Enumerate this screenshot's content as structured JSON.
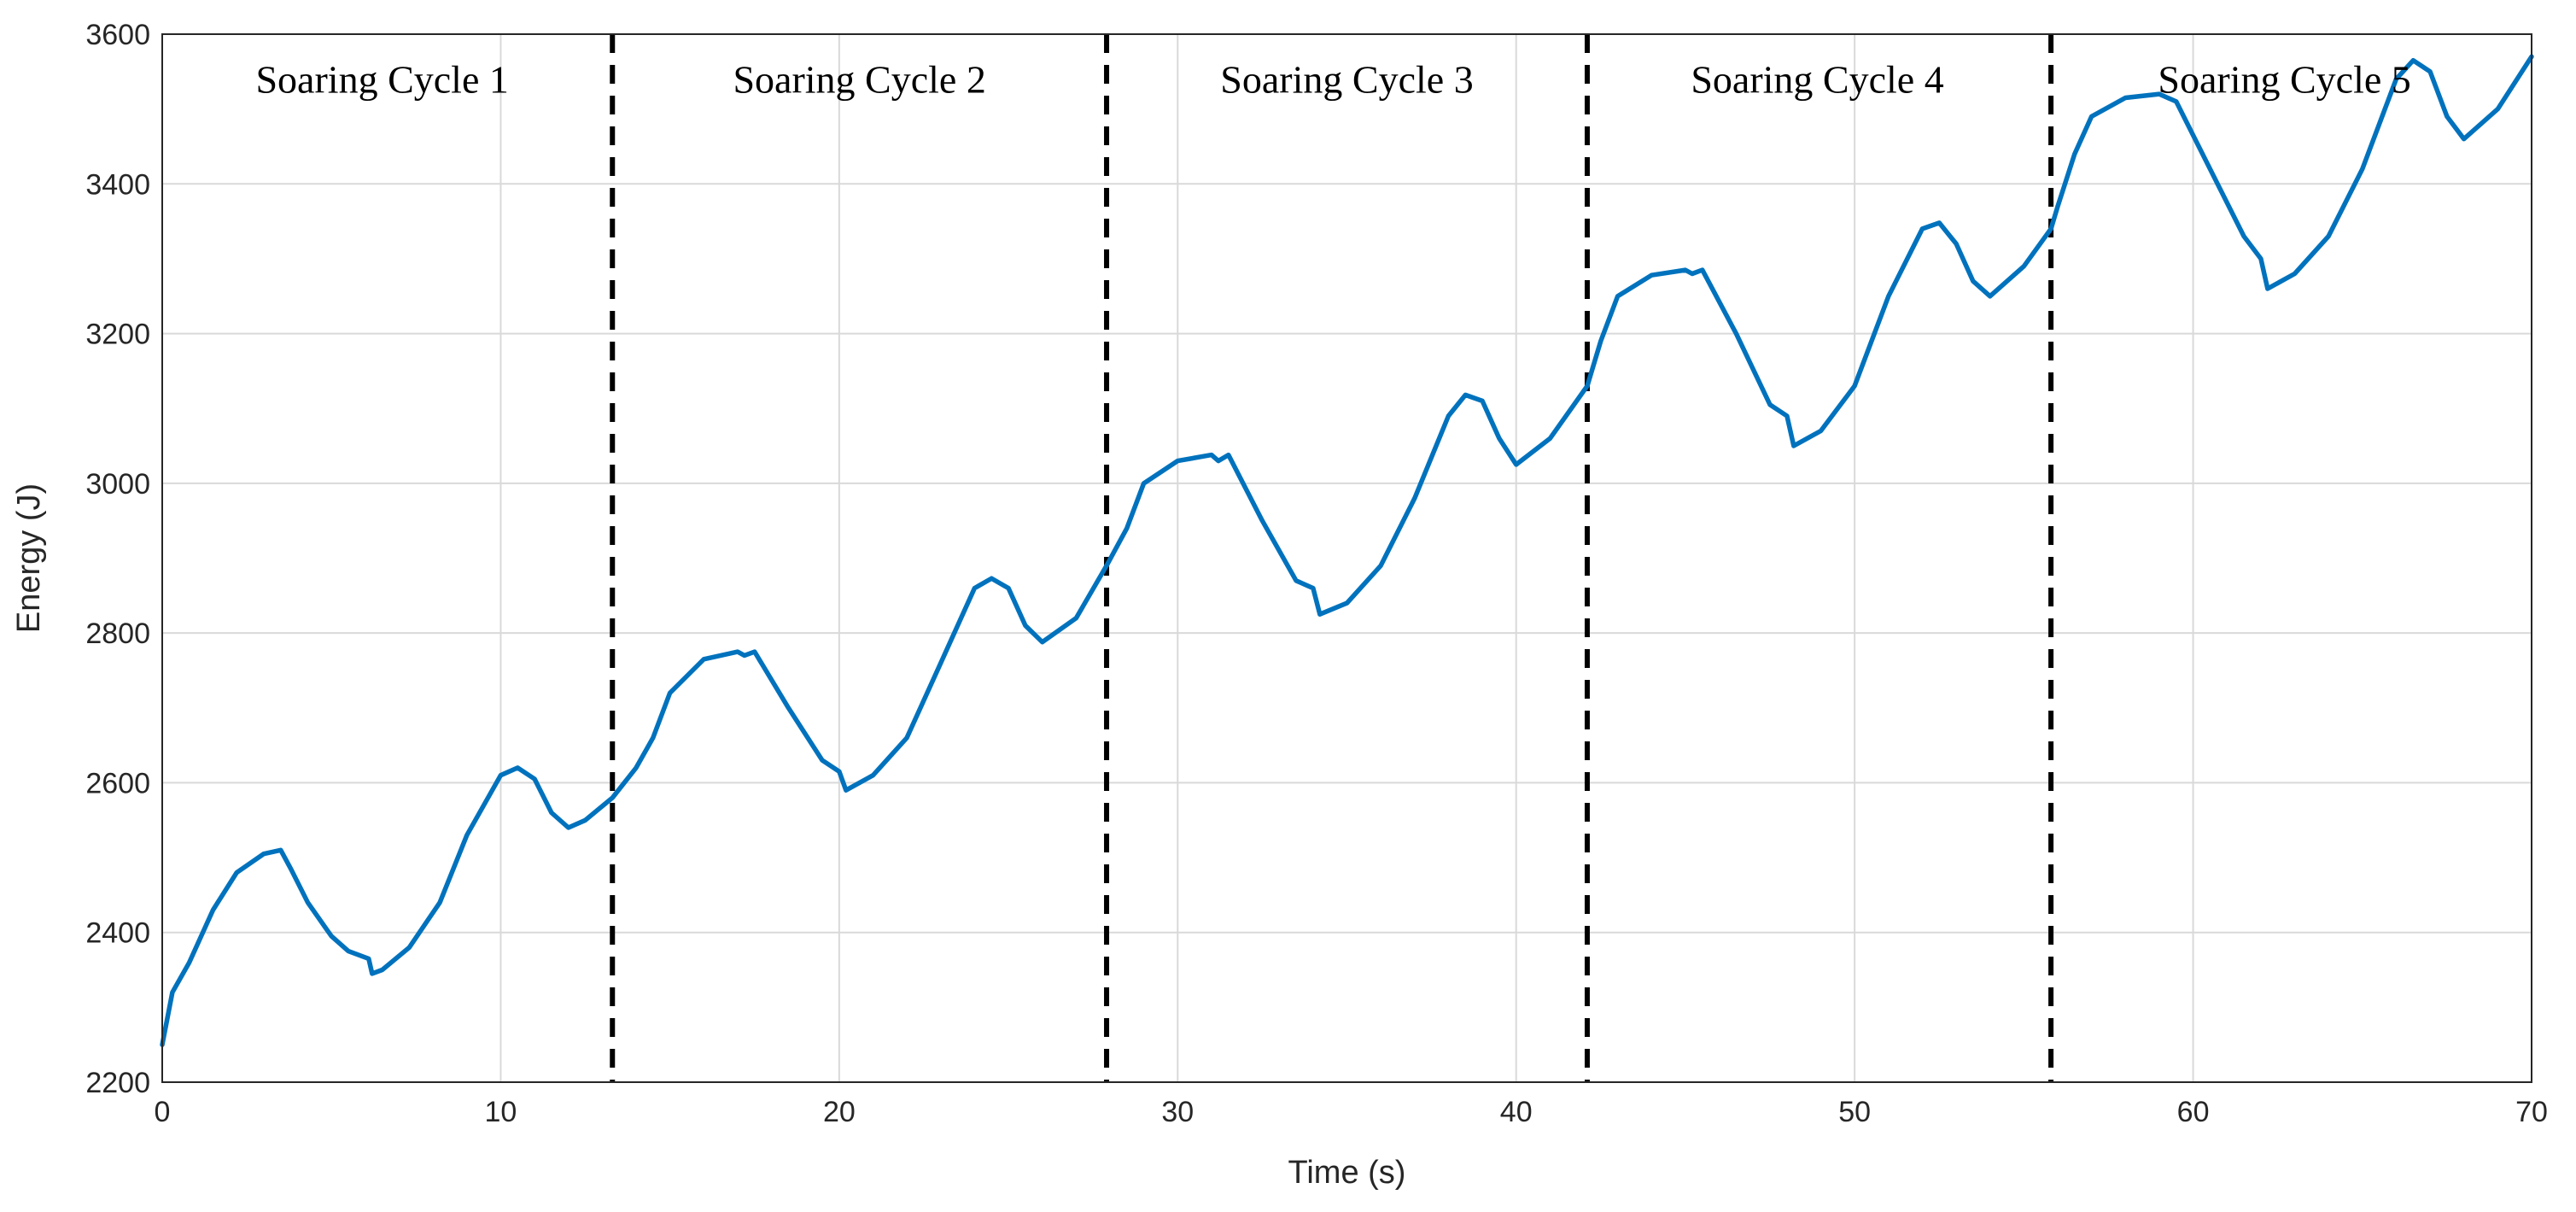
{
  "chart_data": {
    "type": "line",
    "title": "",
    "xlabel": "Time (s)",
    "ylabel": "Energy (J)",
    "xlim": [
      0,
      70
    ],
    "ylim": [
      2200,
      3600
    ],
    "xticks": [
      0,
      10,
      20,
      30,
      40,
      50,
      60,
      70
    ],
    "xtick_labels": [
      "0",
      "10",
      "20",
      "30",
      "40",
      "50",
      "60",
      "70"
    ],
    "yticks": [
      2200,
      2400,
      2600,
      2800,
      3000,
      3200,
      3400,
      3600
    ],
    "ytick_labels": [
      "2200",
      "2400",
      "2600",
      "2800",
      "3000",
      "3200",
      "3400",
      "3600"
    ],
    "grid": true,
    "cycle_dividers": [
      13.3,
      27.9,
      42.1,
      55.8
    ],
    "cycle_labels": [
      {
        "text": "Soaring Cycle 1",
        "x": 6.5
      },
      {
        "text": "Soaring Cycle 2",
        "x": 20.6
      },
      {
        "text": "Soaring Cycle 3",
        "x": 35.0
      },
      {
        "text": "Soaring Cycle 4",
        "x": 48.9
      },
      {
        "text": "Soaring Cycle 5",
        "x": 62.7
      }
    ],
    "cycle_label_y": 3540,
    "series": [
      {
        "name": "Energy",
        "color": "#0072BD",
        "x": [
          0,
          0.3,
          0.8,
          1.5,
          2.2,
          3.0,
          3.5,
          3.8,
          4.3,
          5.0,
          5.5,
          6.1,
          6.2,
          6.5,
          7.3,
          8.2,
          9.0,
          10.0,
          10.5,
          11.0,
          11.5,
          12.0,
          12.5,
          13.3,
          14.0,
          14.5,
          15.0,
          16.0,
          17.0,
          17.2,
          17.5,
          18.5,
          19.5,
          20.0,
          20.2,
          21.0,
          22.0,
          23.0,
          24.0,
          24.5,
          25.0,
          25.5,
          26.0,
          27.0,
          27.9,
          28.5,
          29.0,
          30.0,
          31.0,
          31.2,
          31.5,
          32.5,
          33.5,
          34.0,
          34.2,
          35.0,
          36.0,
          37.0,
          38.0,
          38.5,
          39.0,
          39.5,
          40.0,
          41.0,
          42.1,
          42.5,
          43.0,
          44.0,
          45.0,
          45.2,
          45.5,
          46.5,
          47.5,
          48.0,
          48.2,
          49.0,
          50.0,
          51.0,
          52.0,
          52.5,
          53.0,
          53.5,
          54.0,
          55.0,
          55.8,
          56.0,
          56.5,
          57.0,
          58.0,
          59.0,
          59.5,
          60.5,
          61.5,
          62.0,
          62.2,
          63.0,
          64.0,
          65.0,
          66.0,
          66.5,
          67.0,
          67.5,
          68.0,
          69.0,
          70.0
        ],
        "y": [
          2250,
          2320,
          2360,
          2430,
          2480,
          2505,
          2510,
          2485,
          2440,
          2395,
          2375,
          2365,
          2345,
          2350,
          2380,
          2440,
          2530,
          2610,
          2620,
          2605,
          2560,
          2540,
          2550,
          2580,
          2620,
          2660,
          2720,
          2765,
          2775,
          2770,
          2775,
          2700,
          2630,
          2615,
          2590,
          2610,
          2660,
          2760,
          2860,
          2873,
          2860,
          2810,
          2788,
          2820,
          2890,
          2940,
          3000,
          3030,
          3038,
          3030,
          3038,
          2950,
          2870,
          2860,
          2825,
          2840,
          2890,
          2980,
          3090,
          3118,
          3110,
          3060,
          3025,
          3060,
          3130,
          3190,
          3250,
          3278,
          3285,
          3280,
          3285,
          3200,
          3105,
          3090,
          3050,
          3070,
          3130,
          3250,
          3340,
          3348,
          3320,
          3270,
          3250,
          3290,
          3340,
          3370,
          3440,
          3490,
          3515,
          3520,
          3510,
          3420,
          3330,
          3300,
          3260,
          3280,
          3330,
          3420,
          3540,
          3565,
          3550,
          3490,
          3460,
          3500,
          3570
        ]
      }
    ]
  }
}
